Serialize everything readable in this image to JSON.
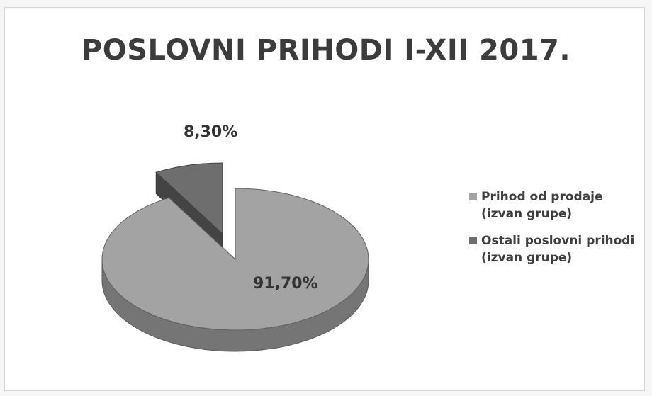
{
  "chart_data": {
    "type": "pie",
    "title": "POSLOVNI PRIHODI I-XII 2017.",
    "series": [
      {
        "name": "Prihod od prodaje\n(izvan grupe)",
        "value": 91.7,
        "label": "91,70%",
        "color": "#a3a3a3"
      },
      {
        "name": "Ostali poslovni prihodi\n(izvan grupe)",
        "value": 8.3,
        "label": "8,30%",
        "color": "#6e6e6e"
      }
    ],
    "legend_position": "right",
    "style": "3d-exploded"
  }
}
